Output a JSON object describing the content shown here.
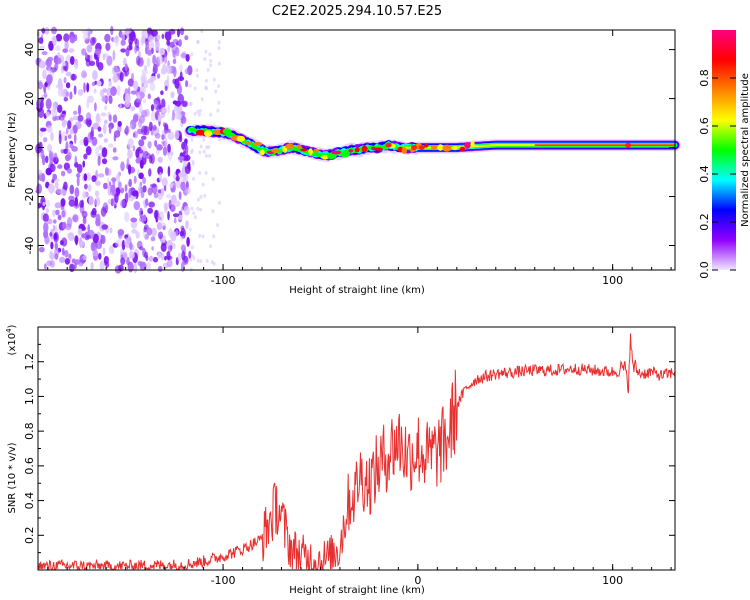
{
  "page_title": "C2E2.2025.294.10.57.E25",
  "chart_data": [
    {
      "type": "heatmap",
      "title": "C2E2.2025.294.10.57.E25",
      "xlabel": "Height of straight line (km)",
      "ylabel": "Frequency (Hz)",
      "xlim": [
        -195,
        132
      ],
      "ylim": [
        -50,
        48
      ],
      "x_ticks": [
        -100,
        100
      ],
      "y_ticks": [
        -40,
        -20,
        0,
        20,
        40
      ],
      "x_tick_labels": [
        "-100",
        "100"
      ],
      "y_tick_labels": [
        "-40",
        "-20",
        "0",
        "20",
        "40"
      ],
      "colorbar": {
        "label": "Normalized spectral amplitude",
        "range": [
          0,
          1
        ],
        "ticks": [
          "0.0",
          "0.2",
          "0.4",
          "0.6",
          "0.8"
        ],
        "colormap": [
          "#f0e6ff",
          "#9000ff",
          "#0000ff",
          "#00ffff",
          "#00ff00",
          "#ffff00",
          "#ff8000",
          "#ff0000",
          "#ff0080"
        ]
      },
      "ridge": {
        "description": "frequency of dominant spectral peak vs height",
        "x": [
          -117,
          -110,
          -100,
          -95,
          -90,
          -85,
          -80,
          -75,
          -70,
          -65,
          -60,
          -55,
          -50,
          -45,
          -40,
          -35,
          -30,
          -25,
          -20,
          -15,
          -10,
          0,
          10,
          20,
          40,
          60,
          80,
          100,
          110,
          132
        ],
        "y": [
          7,
          7,
          6,
          5,
          3,
          1,
          -1,
          -2,
          -1,
          0,
          -1,
          -2,
          -3,
          -3,
          -2,
          -1,
          -1,
          0,
          0,
          1,
          0,
          0,
          0,
          0,
          1,
          1,
          1,
          1,
          1,
          1
        ]
      },
      "noise_region_x": [
        -195,
        -117
      ]
    },
    {
      "type": "line",
      "xlabel": "Height of straight line (km)",
      "ylabel": "SNR (10 * v/v)",
      "y_scale_label": "(x10",
      "y_scale_exponent": "4",
      "y_scale_suffix": ")",
      "xlim": [
        -195,
        132
      ],
      "ylim": [
        0,
        1.4
      ],
      "x_ticks": [
        -100,
        0,
        100
      ],
      "x_tick_labels": [
        "-100",
        "0",
        "100"
      ],
      "y_ticks": [
        0.2,
        0.4,
        0.6,
        0.8,
        1.0,
        1.2
      ],
      "y_tick_labels": [
        "0.2",
        "0.4",
        "0.6",
        "0.8",
        "1.0",
        "1.2"
      ],
      "color": "#e83030",
      "x": [
        -195,
        -180,
        -160,
        -140,
        -120,
        -110,
        -100,
        -90,
        -80,
        -76,
        -72,
        -68,
        -65,
        -60,
        -55,
        -50,
        -45,
        -40,
        -36,
        -32,
        -30,
        -25,
        -20,
        -15,
        -10,
        -5,
        0,
        5,
        10,
        15,
        20,
        25,
        30,
        40,
        50,
        60,
        70,
        80,
        90,
        100,
        104,
        106,
        108,
        109,
        110,
        112,
        115,
        120,
        125,
        132
      ],
      "y": [
        0.02,
        0.025,
        0.02,
        0.025,
        0.03,
        0.05,
        0.08,
        0.12,
        0.18,
        0.28,
        0.38,
        0.22,
        0.12,
        0.08,
        0.06,
        0.05,
        0.07,
        0.14,
        0.38,
        0.45,
        0.55,
        0.5,
        0.6,
        0.68,
        0.75,
        0.65,
        0.7,
        0.65,
        0.68,
        0.75,
        0.95,
        1.05,
        1.1,
        1.13,
        1.14,
        1.15,
        1.15,
        1.16,
        1.15,
        1.14,
        1.15,
        1.17,
        1.05,
        1.34,
        1.2,
        1.15,
        1.13,
        1.14,
        1.12,
        1.14
      ],
      "noise_amplitude": 0.035
    }
  ]
}
